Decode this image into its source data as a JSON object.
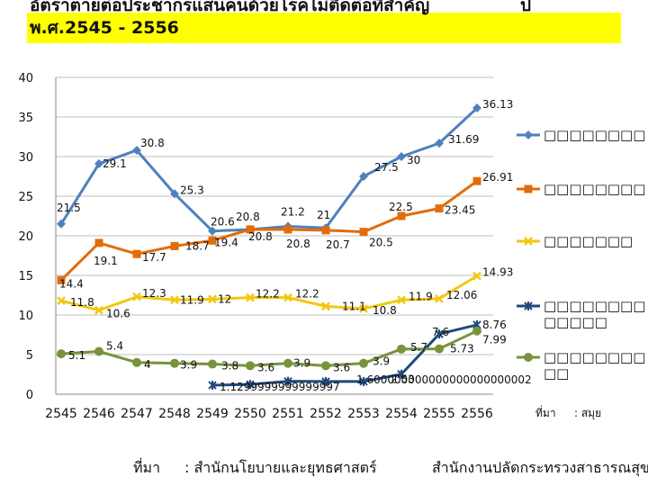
{
  "header": {
    "title_line1": "อัตราตายต่อประชากรแสนคนด้วยโรคไม่ติดต่อที่สำคัญ",
    "title_line2": "พ.ศ.2545 - 2556",
    "title_suffix": "ป"
  },
  "footer": {
    "source_label": "ที่มา",
    "source_text": ": สำนักนโยบายและยุทธศาสตร์",
    "agency_text": "สำนักงานปลัดกระทรวงสาธารณสุข"
  },
  "legend_note": {
    "label": "ที่มา",
    "value": ": สมุย"
  },
  "colors": {
    "band": "#ffff00",
    "grid": "#bfbfbf"
  },
  "chart_data": {
    "type": "line",
    "title": "อัตราตายต่อประชากรแสนคนด้วยโรคไม่ติดต่อที่สำคัญ พ.ศ.2545 - 2556",
    "xlabel": "",
    "ylabel": "",
    "ylim": [
      0,
      40
    ],
    "yticks": [
      "0",
      "5",
      "10",
      "15",
      "20",
      "25",
      "30",
      "35",
      "40"
    ],
    "grid": true,
    "legend_position": "right",
    "categories": [
      "2545",
      "2546",
      "2547",
      "2548",
      "2549",
      "2550",
      "2551",
      "2552",
      "2553",
      "2554",
      "2555",
      "2556"
    ],
    "series": [
      {
        "name": "□□□□□□□□",
        "color": "#4f81bd",
        "marker": "diamond",
        "values": [
          21.5,
          29.1,
          30.8,
          25.3,
          20.6,
          20.8,
          21.2,
          21,
          27.5,
          30,
          31.69,
          36.13
        ],
        "labels": [
          "21.5",
          "29.1",
          "30.8",
          "25.3",
          "20.6",
          "20.8",
          "21.2",
          "21",
          "27.5",
          "30",
          "31.69",
          "36.13"
        ]
      },
      {
        "name": "□□□□□□□□",
        "color": "#e36c0a",
        "marker": "square",
        "values": [
          14.4,
          19.1,
          17.7,
          18.7,
          19.4,
          20.8,
          20.8,
          20.7,
          20.5,
          22.5,
          23.45,
          26.91
        ],
        "labels": [
          "14.4",
          "19.1",
          "17.7",
          "18.7",
          "19.4",
          "20.8",
          "20.8",
          "20.7",
          "20.5",
          "22.5",
          "23.45",
          "26.91"
        ]
      },
      {
        "name": "□□□□□□□",
        "color": "#f2c80f",
        "marker": "x",
        "values": [
          11.8,
          10.6,
          12.3,
          11.9,
          12,
          12.2,
          12.2,
          11.1,
          10.8,
          11.9,
          12.06,
          14.93
        ],
        "labels": [
          "11.8",
          "10.6",
          "12.3",
          "11.9",
          "12",
          "12.2",
          "12.2",
          "11.1",
          "10.8",
          "11.9",
          "12.06",
          "14.93"
        ]
      },
      {
        "name": "□□□□□□□□ □□□□□",
        "color": "#1f497d",
        "marker": "star",
        "values": [
          null,
          null,
          null,
          null,
          1.13,
          1.23,
          1.63,
          1.6,
          1.6,
          2.53,
          7.6,
          8.76
        ],
        "labels": [
          "",
          "",
          "",
          "",
          "1.1299999999999997",
          "",
          "",
          "",
          "1.600000000000000000000002",
          "2.53",
          "7.6",
          "8.76"
        ]
      },
      {
        "name": "□□□□□□□□ □□",
        "color": "#77933c",
        "marker": "circle",
        "values": [
          5.1,
          5.4,
          4,
          3.9,
          3.8,
          3.6,
          3.9,
          3.6,
          3.9,
          5.7,
          5.73,
          7.99
        ],
        "labels": [
          "5.1",
          "5.4",
          "4",
          "3.9",
          "3.8",
          "3.6",
          "3.9",
          "3.6",
          "3.9",
          "5.7",
          "5.73",
          "7.99"
        ]
      }
    ]
  }
}
